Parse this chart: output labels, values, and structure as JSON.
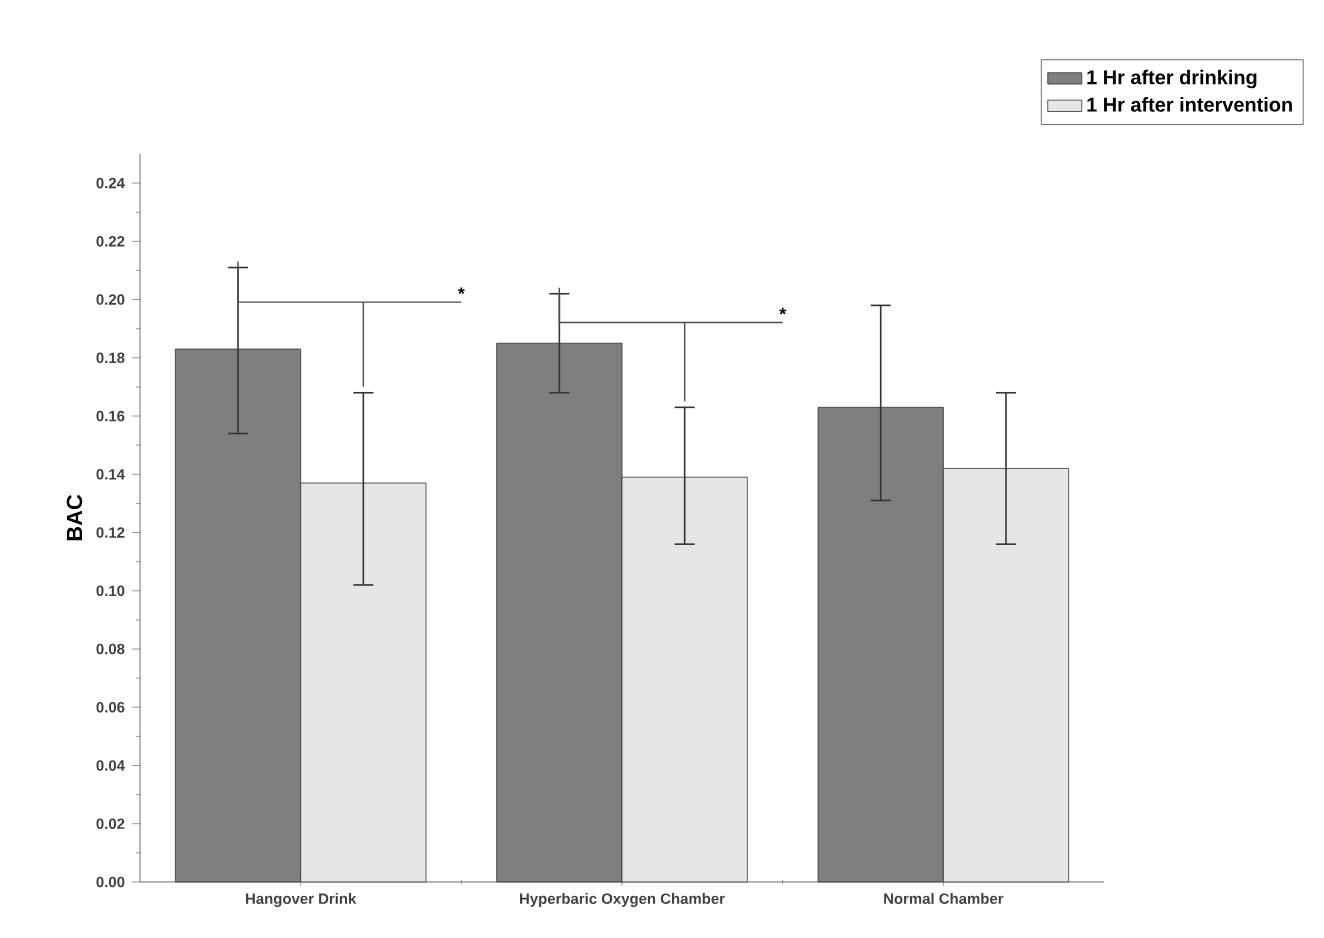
{
  "chart_data": {
    "type": "bar",
    "ylabel": "BAC",
    "categories": [
      "Hangover Drink",
      "Hyperbaric Oxygen Chamber",
      "Normal Chamber"
    ],
    "series": [
      {
        "name": "1 Hr after drinking",
        "color": "#7f7f7f",
        "values": [
          0.183,
          0.185,
          0.163
        ],
        "errors": [
          [
            0.154,
            0.211
          ],
          [
            0.168,
            0.202
          ],
          [
            0.131,
            0.198
          ]
        ]
      },
      {
        "name": "1 Hr after intervention",
        "color": "#e6e6e6",
        "values": [
          0.137,
          0.139,
          0.142
        ],
        "errors": [
          [
            0.102,
            0.168
          ],
          [
            0.116,
            0.163
          ],
          [
            0.116,
            0.168
          ]
        ]
      }
    ],
    "ylim": [
      0,
      0.25
    ],
    "yticks": [
      {
        "value": 0,
        "label": "0.00"
      },
      {
        "value": 0.02,
        "label": "0.02"
      },
      {
        "value": 0.04,
        "label": "0.04"
      },
      {
        "value": 0.06,
        "label": "0.06"
      },
      {
        "value": 0.08,
        "label": "0.08"
      },
      {
        "value": 0.1,
        "label": "0.10"
      },
      {
        "value": 0.12,
        "label": "0.12"
      },
      {
        "value": 0.14,
        "label": "0.14"
      },
      {
        "value": 0.16,
        "label": "0.16"
      },
      {
        "value": 0.18,
        "label": "0.18"
      },
      {
        "value": 0.2,
        "label": "0.20"
      },
      {
        "value": 0.22,
        "label": "0.22"
      },
      {
        "value": 0.24,
        "label": "0.24"
      }
    ],
    "annotations": [
      "*",
      "*"
    ],
    "grid": false,
    "legend": "top right"
  }
}
